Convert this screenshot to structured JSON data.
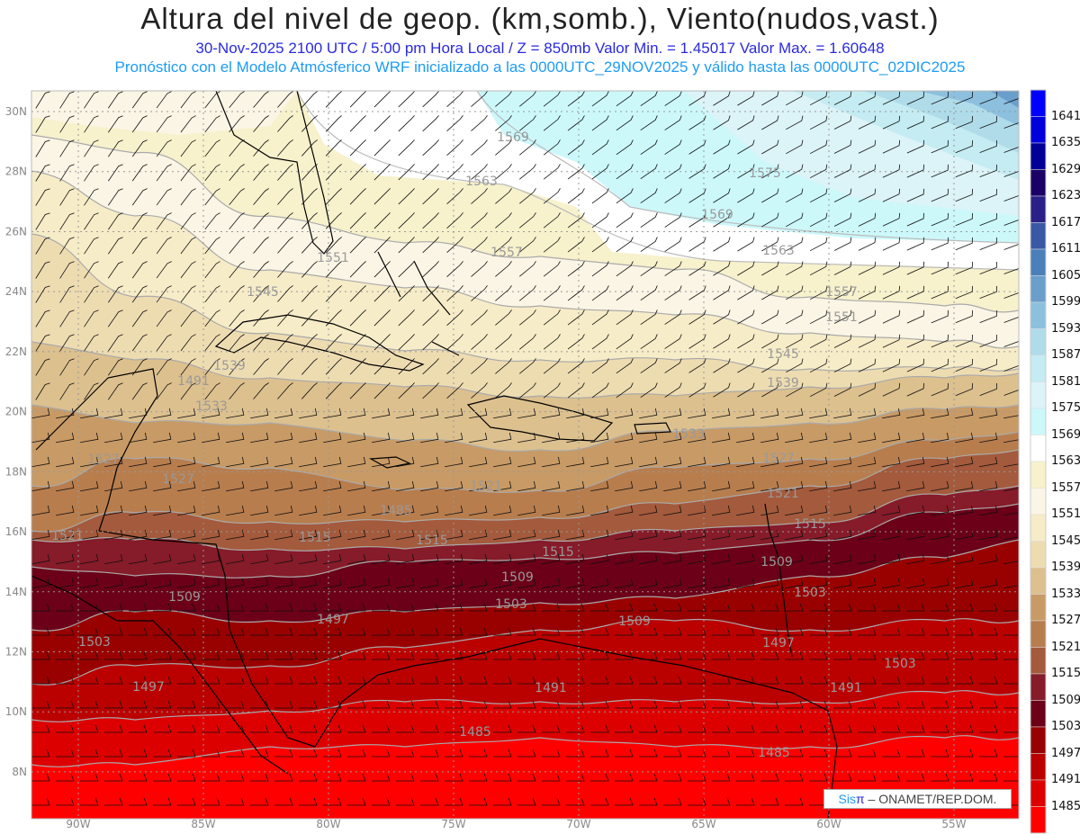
{
  "header": {
    "title": "Altura del nivel de geop. (km,somb.), Viento(nudos,vast.)",
    "subtitle": "30-Nov-2025   2100 UTC / 5:00 pm Hora Local / Z = 850mb      Valor Min. = 1.45017   Valor Max. = 1.60648",
    "model_line": "Pronóstico con el Modelo Atmósferico WRF inicializado a las 0000UTC_29NOV2025 y válido hasta las  0000UTC_02DIC2025"
  },
  "axes": {
    "lat_labels": [
      "30N",
      "28N",
      "26N",
      "24N",
      "22N",
      "20N",
      "18N",
      "16N",
      "14N",
      "12N",
      "10N",
      "8N"
    ],
    "lon_labels": [
      "90W",
      "85W",
      "80W",
      "75W",
      "70W",
      "65W",
      "60W",
      "55W"
    ]
  },
  "colorbar": {
    "labels": [
      "1641",
      "1635",
      "1629",
      "1623",
      "1617",
      "1611",
      "1605",
      "1599",
      "1593",
      "1587",
      "1581",
      "1575",
      "1569",
      "1563",
      "1557",
      "1551",
      "1545",
      "1539",
      "1533",
      "1527",
      "1521",
      "1515",
      "1509",
      "1503",
      "1497",
      "1491",
      "1485"
    ],
    "colors": [
      "#0000ff",
      "#0000dd",
      "#000099",
      "#1a0066",
      "#2a2088",
      "#3a58a6",
      "#4a7fba",
      "#6a9ecb",
      "#8cc0de",
      "#b0dcea",
      "#c4ecf2",
      "#dcf3f7",
      "#ccf8fa",
      "#ffffff",
      "#f7f1cc",
      "#fbf5e5",
      "#f6ecc7",
      "#eedcb1",
      "#dcc08e",
      "#c89a65",
      "#b87d4d",
      "#a45a3c",
      "#861b29",
      "#6b0018",
      "#990000",
      "#bb0000",
      "#dd0000",
      "#ff0000"
    ]
  },
  "contour_labels": [
    "1569",
    "1563",
    "1575",
    "1569",
    "1563",
    "1557",
    "1551",
    "1545",
    "1539",
    "1533",
    "1527",
    "1521",
    "1515",
    "1509",
    "1503",
    "1497",
    "1491",
    "1485",
    "1551",
    "1557",
    "1545",
    "1539",
    "1533",
    "1527",
    "1521",
    "1515",
    "1509",
    "1503",
    "1497",
    "1491",
    "1485",
    "1515",
    "1509",
    "1503",
    "1497",
    "1491",
    "1485",
    "1527",
    "1521",
    "1515",
    "1509",
    "1503",
    "1497"
  ],
  "credit": {
    "sis": "Sis",
    "pi": "π",
    "org": " –  ONAMET/REP.DOM."
  }
}
